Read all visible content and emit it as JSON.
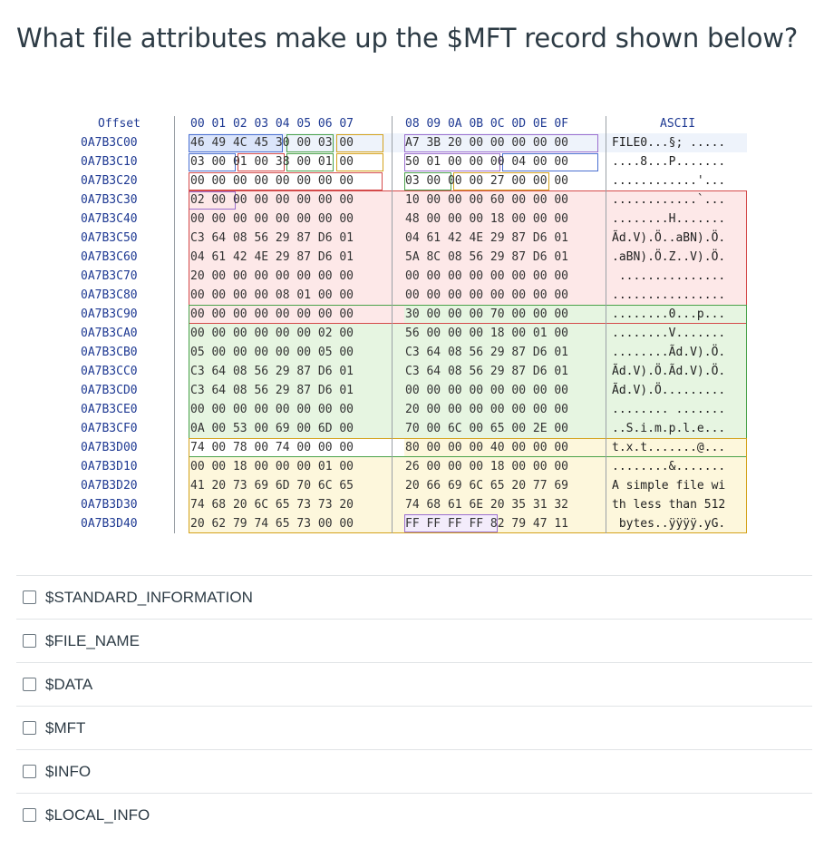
{
  "question": "What file attributes make up the $MFT record shown below?",
  "hex_header": {
    "offset": "Offset",
    "cols1": "00 01 02 03 04 05 06 07",
    "cols2": "08 09 0A 0B 0C 0D 0E 0F",
    "ascii": "ASCII"
  },
  "rows": [
    {
      "off": "0A7B3C00",
      "h1": "46 49 4C 45 30 00 03 00",
      "h2": "A7 3B 20 00 00 00 00 00",
      "a": "FILE0...§; ....."
    },
    {
      "off": "0A7B3C10",
      "h1": "03 00 01 00 38 00 01 00",
      "h2": "50 01 00 00 00 04 00 00",
      "a": "....8...P......."
    },
    {
      "off": "0A7B3C20",
      "h1": "00 00 00 00 00 00 00 00",
      "h2": "03 00 00 00 27 00 00 00",
      "a": "............'..."
    },
    {
      "off": "0A7B3C30",
      "h1": "02 00 00 00 00 00 00 00",
      "h2": "10 00 00 00 60 00 00 00",
      "a": "............`..."
    },
    {
      "off": "0A7B3C40",
      "h1": "00 00 00 00 00 00 00 00",
      "h2": "48 00 00 00 18 00 00 00",
      "a": "........H......."
    },
    {
      "off": "0A7B3C50",
      "h1": "C3 64 08 56 29 87 D6 01",
      "h2": "04 61 42 4E 29 87 D6 01",
      "a": "Ãd.V).Ö..aBN).Ö."
    },
    {
      "off": "0A7B3C60",
      "h1": "04 61 42 4E 29 87 D6 01",
      "h2": "5A 8C 08 56 29 87 D6 01",
      "a": ".aBN).Ö.Z..V).Ö."
    },
    {
      "off": "0A7B3C70",
      "h1": "20 00 00 00 00 00 00 00",
      "h2": "00 00 00 00 00 00 00 00",
      "a": " ..............."
    },
    {
      "off": "0A7B3C80",
      "h1": "00 00 00 00 08 01 00 00",
      "h2": "00 00 00 00 00 00 00 00",
      "a": "................"
    },
    {
      "off": "0A7B3C90",
      "h1": "00 00 00 00 00 00 00 00",
      "h2": "30 00 00 00 70 00 00 00",
      "a": "........0...p..."
    },
    {
      "off": "0A7B3CA0",
      "h1": "00 00 00 00 00 00 02 00",
      "h2": "56 00 00 00 18 00 01 00",
      "a": "........V......."
    },
    {
      "off": "0A7B3CB0",
      "h1": "05 00 00 00 00 00 05 00",
      "h2": "C3 64 08 56 29 87 D6 01",
      "a": "........Ãd.V).Ö."
    },
    {
      "off": "0A7B3CC0",
      "h1": "C3 64 08 56 29 87 D6 01",
      "h2": "C3 64 08 56 29 87 D6 01",
      "a": "Ãd.V).Ö.Ãd.V).Ö."
    },
    {
      "off": "0A7B3CD0",
      "h1": "C3 64 08 56 29 87 D6 01",
      "h2": "00 00 00 00 00 00 00 00",
      "a": "Ãd.V).Ö........."
    },
    {
      "off": "0A7B3CE0",
      "h1": "00 00 00 00 00 00 00 00",
      "h2": "20 00 00 00 00 00 00 00",
      "a": "........ ......."
    },
    {
      "off": "0A7B3CF0",
      "h1": "0A 00 53 00 69 00 6D 00",
      "h2": "70 00 6C 00 65 00 2E 00",
      "a": "..S.i.m.p.l.e..."
    },
    {
      "off": "0A7B3D00",
      "h1": "74 00 78 00 74 00 00 00",
      "h2": "80 00 00 00 40 00 00 00",
      "a": "t.x.t.......@..."
    },
    {
      "off": "0A7B3D10",
      "h1": "00 00 18 00 00 00 01 00",
      "h2": "26 00 00 00 18 00 00 00",
      "a": "........&......."
    },
    {
      "off": "0A7B3D20",
      "h1": "41 20 73 69 6D 70 6C 65",
      "h2": "20 66 69 6C 65 20 77 69",
      "a": "A simple file wi"
    },
    {
      "off": "0A7B3D30",
      "h1": "74 68 20 6C 65 73 73 20",
      "h2": "74 68 61 6E 20 35 31 32",
      "a": "th less than 512"
    },
    {
      "off": "0A7B3D40",
      "h1": "20 62 79 74 65 73 00 00",
      "h2": "FF FF FF FF 82 79 47 11",
      "a": " bytes..ÿÿÿÿ.yG."
    }
  ],
  "options": [
    {
      "label": "$STANDARD_INFORMATION"
    },
    {
      "label": "$FILE_NAME"
    },
    {
      "label": "$DATA"
    },
    {
      "label": "$MFT"
    },
    {
      "label": "$INFO"
    },
    {
      "label": "$LOCAL_INFO"
    }
  ],
  "colors": {
    "header_blue": "#d9e4f7",
    "standard_info_pink": "#fbe3e3",
    "file_name_green": "#e4f4df",
    "data_yellow": "#fdf6da",
    "offset_text": "#1f3a93"
  }
}
